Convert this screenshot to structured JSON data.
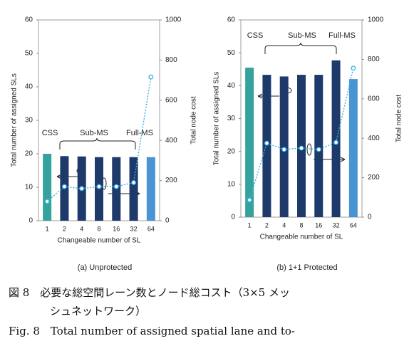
{
  "chart_data": [
    {
      "type": "bar",
      "subtitle": "(a) Unprotected",
      "xlabel": "Changeable number of SL",
      "ylabel": "Total number of assigned SLs",
      "y2label": "Total node cost",
      "categories": [
        "1",
        "2",
        "4",
        "8",
        "16",
        "32",
        "64"
      ],
      "ylim": [
        0,
        60
      ],
      "yticks": [
        0,
        10,
        20,
        30,
        40,
        50,
        60
      ],
      "y2lim": [
        0,
        1000
      ],
      "y2ticks": [
        0,
        200,
        400,
        600,
        800,
        1000
      ],
      "annotations": [
        "CSS",
        "Sub-MS",
        "Full-MS"
      ],
      "series": [
        {
          "type": "bar",
          "colors": [
            "#35a39d",
            "#1d3a6b",
            "#1d3a6b",
            "#1d3a6b",
            "#1d3a6b",
            "#1d3a6b",
            "#4a94d4"
          ],
          "values": [
            20,
            19.3,
            19.2,
            19,
            19,
            19,
            19
          ]
        },
        {
          "type": "line",
          "axis": "y2",
          "color": "#3fb0e3",
          "values": [
            96,
            170,
            160,
            170,
            170,
            190,
            716
          ]
        }
      ]
    },
    {
      "type": "bar",
      "subtitle": "(b) 1+1 Protected",
      "xlabel": "Changeable number of SL",
      "ylabel": "Total number of assigned SLs",
      "y2label": "Total node cost",
      "categories": [
        "1",
        "2",
        "4",
        "8",
        "16",
        "32",
        "64"
      ],
      "ylim": [
        0,
        60
      ],
      "yticks": [
        0,
        10,
        20,
        30,
        40,
        50,
        60
      ],
      "y2lim": [
        0,
        1000
      ],
      "y2ticks": [
        0,
        200,
        400,
        600,
        800,
        1000
      ],
      "annotations": [
        "CSS",
        "Sub-MS",
        "Full-MS"
      ],
      "series": [
        {
          "type": "bar",
          "colors": [
            "#35a39d",
            "#1d3a6b",
            "#1d3a6b",
            "#1d3a6b",
            "#1d3a6b",
            "#1d3a6b",
            "#4a94d4"
          ],
          "values": [
            45.5,
            43.3,
            42.8,
            43.3,
            43.3,
            47.7,
            42
          ]
        },
        {
          "type": "line",
          "axis": "y2",
          "color": "#3fb0e3",
          "values": [
            87,
            375,
            343,
            350,
            343,
            379,
            755
          ]
        }
      ]
    }
  ],
  "caption": {
    "jp_lines": [
      "図 8　必要な総空間レーン数とノード総コスト（3×5 メッ",
      "シュネットワーク）"
    ],
    "en_line": "Fig. 8　Total number of assigned spatial lane and to-"
  }
}
